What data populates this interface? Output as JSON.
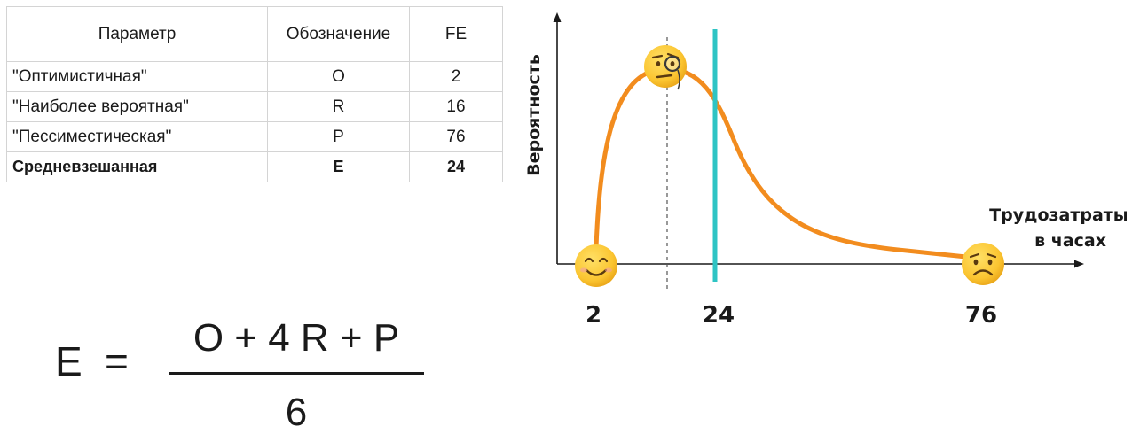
{
  "table": {
    "headers": [
      "Параметр",
      "Обозначение",
      "FE"
    ],
    "rows": [
      {
        "param": "\"Оптимистичная\"",
        "symbol": "O",
        "value": "2"
      },
      {
        "param": "\"Наиболее вероятная\"",
        "symbol": "R",
        "value": "16"
      },
      {
        "param": "\"Пессиместическая\"",
        "symbol": "P",
        "value": "76"
      },
      {
        "param": "Средневзешанная",
        "symbol": "E",
        "value": "24"
      }
    ]
  },
  "formula": {
    "lhs": "E",
    "equals": "=",
    "numerator": "O + 4 R + P",
    "denominator": "6"
  },
  "chart": {
    "y_label": "Вероятность",
    "x_label_line1": "Трудозатраты",
    "x_label_line2": "в часах",
    "ticks": [
      "2",
      "24",
      "76"
    ],
    "colors": {
      "curve": "#f28c1e",
      "mean_line": "#2ec4c4",
      "axis": "#1a1a1a"
    },
    "markers": [
      "smiling-face-icon",
      "face-with-monocle-icon",
      "worried-face-icon"
    ]
  }
}
